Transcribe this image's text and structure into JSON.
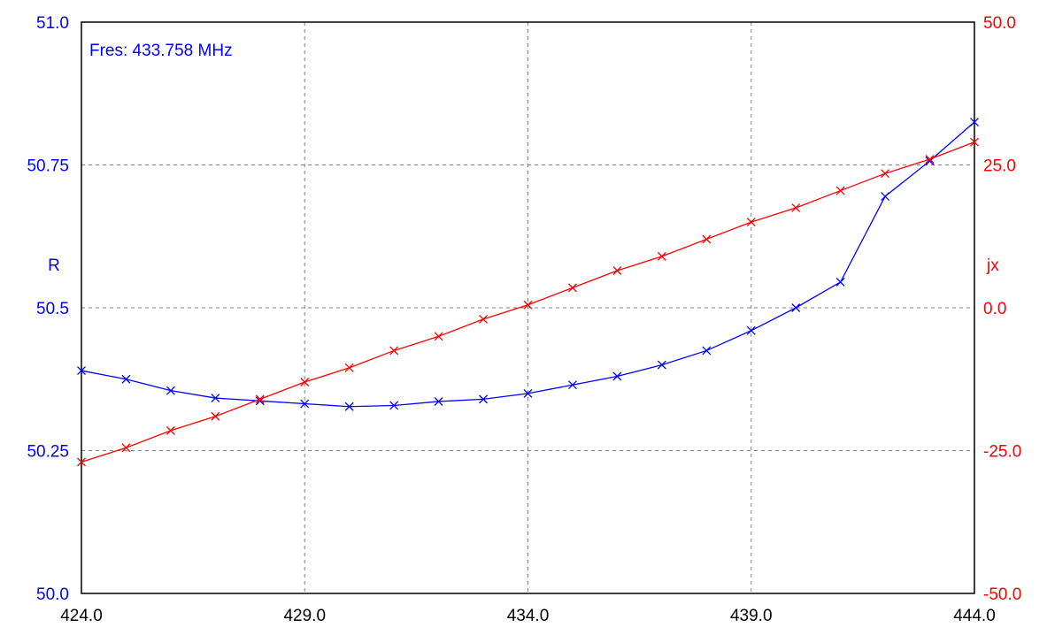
{
  "chart_data": {
    "type": "line",
    "annotation": "Fres: 433.758 MHz",
    "xlim": [
      424.0,
      444.0
    ],
    "x_ticks": [
      "424.0",
      "429.0",
      "434.0",
      "439.0",
      "444.0"
    ],
    "y_left": {
      "label": "R",
      "lim": [
        50.0,
        51.0
      ],
      "ticks": [
        "50.0",
        "50.25",
        "50.5",
        "50.75",
        "51.0"
      ],
      "color": "#0000ff"
    },
    "y_right": {
      "label": "jx",
      "lim": [
        -50.0,
        50.0
      ],
      "ticks": [
        "-50.0",
        "-25.0",
        "0.0",
        "25.0",
        "50.0"
      ],
      "color": "#ff0000"
    },
    "grid": true,
    "x": [
      424,
      425,
      426,
      427,
      428,
      429,
      430,
      431,
      432,
      433,
      434,
      435,
      436,
      437,
      438,
      439,
      440,
      441,
      442,
      443,
      444
    ],
    "series": [
      {
        "axis": "left",
        "color": "#0000ff",
        "values": [
          50.39,
          50.375,
          50.355,
          50.342,
          50.337,
          50.332,
          50.327,
          50.329,
          50.336,
          50.34,
          50.35,
          50.365,
          50.38,
          50.4,
          50.425,
          50.46,
          50.5,
          50.545,
          50.695,
          50.757,
          50.825
        ]
      },
      {
        "axis": "right",
        "color": "#ff0000",
        "values": [
          -27.0,
          -24.5,
          -21.5,
          -19.0,
          -16.0,
          -13.0,
          -10.5,
          -7.5,
          -5.0,
          -2.0,
          0.5,
          3.5,
          6.5,
          9.0,
          12.0,
          15.0,
          17.5,
          20.5,
          23.5,
          26.0,
          29.0
        ]
      }
    ]
  }
}
